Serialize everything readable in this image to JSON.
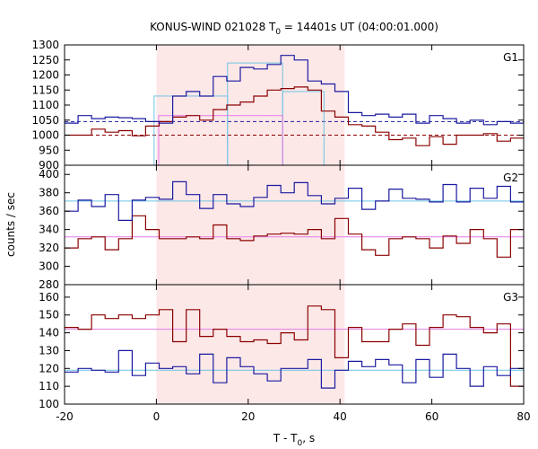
{
  "chart_data": {
    "type": "line",
    "title": {
      "prefix": "KONUS-WIND 021028 T",
      "subscript": "0",
      "suffix": " = 14401s UT (04:00:01.000)"
    },
    "xlabel": {
      "prefix": "T - T",
      "subscript": "0",
      "suffix": ", s"
    },
    "ylabel": "counts / sec",
    "x_range": [
      -20,
      80
    ],
    "x_ticks": [
      "-20",
      "0",
      "20",
      "40",
      "60",
      "80"
    ],
    "highlight_interval": [
      0,
      41
    ],
    "bin_width": 2.944,
    "bins_x_start": -20,
    "colors": {
      "blue": "#1a1aa0",
      "red": "#8b0000",
      "cyan": "#6fc3e3",
      "pink": "#e37ce8",
      "shade": "#fde8e8"
    },
    "panels": [
      {
        "label": "G1",
        "y_range": [
          900,
          1300
        ],
        "y_ticks": [
          "900",
          "950",
          "1000",
          "1050",
          "1100",
          "1150",
          "1200",
          "1250",
          "1300"
        ],
        "series_blue": [
          1040,
          1065,
          1055,
          1060,
          1058,
          1055,
          1045,
          1040,
          1130,
          1145,
          1130,
          1195,
          1180,
          1225,
          1220,
          1235,
          1265,
          1250,
          1180,
          1170,
          1145,
          1075,
          1065,
          1070,
          1060,
          1070,
          1040,
          1065,
          1055,
          1040,
          1050,
          1035,
          1045,
          1040
        ],
        "series_red": [
          1000,
          1000,
          1020,
          1010,
          1015,
          998,
          1030,
          1045,
          1060,
          1065,
          1050,
          1085,
          1100,
          1110,
          1130,
          1150,
          1155,
          1160,
          1150,
          1080,
          1060,
          1035,
          1030,
          1010,
          985,
          990,
          965,
          995,
          970,
          1000,
          1000,
          1005,
          980,
          990
        ],
        "fit_blue": {
          "value": 1045,
          "style": "dashed"
        },
        "fit_red": {
          "value": 1000,
          "style": "dashed"
        },
        "avg_cyan": [
          {
            "x0": -0.5,
            "x1": 15.5,
            "y": 1130
          },
          {
            "x0": 15.5,
            "x1": 27.5,
            "y": 1240
          },
          {
            "x0": 27.5,
            "x1": 36.5,
            "y": 1145
          }
        ],
        "avg_pink": [
          {
            "x0": 0.5,
            "x1": 27.5,
            "y": 1065
          }
        ]
      },
      {
        "label": "G2",
        "y_range": [
          280,
          410
        ],
        "y_ticks": [
          "280",
          "300",
          "320",
          "340",
          "360",
          "380",
          "400"
        ],
        "series_blue": [
          360,
          372,
          365,
          378,
          350,
          372,
          375,
          373,
          392,
          378,
          363,
          378,
          368,
          365,
          375,
          388,
          380,
          391,
          377,
          368,
          374,
          385,
          362,
          371,
          384,
          374,
          373,
          370,
          389,
          370,
          385,
          374,
          387,
          370
        ],
        "series_red": [
          320,
          330,
          332,
          318,
          330,
          355,
          340,
          330,
          330,
          332,
          330,
          345,
          330,
          328,
          333,
          335,
          336,
          335,
          340,
          330,
          352,
          335,
          318,
          312,
          330,
          332,
          330,
          320,
          333,
          325,
          340,
          330,
          310,
          340
        ],
        "fit_blue": {
          "value": 371,
          "style": "solid"
        },
        "fit_red": {
          "value": 332,
          "style": "solid"
        }
      },
      {
        "label": "G3",
        "y_range": [
          100,
          167
        ],
        "y_ticks": [
          "100",
          "110",
          "120",
          "130",
          "140",
          "150",
          "160"
        ],
        "series_blue": [
          118,
          120,
          119,
          118,
          130,
          116,
          123,
          120,
          121,
          117,
          128,
          112,
          126,
          121,
          117,
          113,
          120,
          120,
          125,
          109,
          119,
          124,
          121,
          125,
          122,
          112,
          125,
          115,
          128,
          120,
          110,
          121,
          116,
          120
        ],
        "series_red": [
          143,
          142,
          150,
          148,
          150,
          148,
          150,
          153,
          135,
          153,
          138,
          142,
          138,
          135,
          136,
          134,
          140,
          136,
          155,
          153,
          126,
          143,
          135,
          135,
          142,
          145,
          133,
          143,
          150,
          149,
          143,
          140,
          145,
          110
        ],
        "fit_blue": {
          "value": 119,
          "style": "solid"
        },
        "fit_red": {
          "value": 142,
          "style": "solid"
        }
      }
    ]
  }
}
